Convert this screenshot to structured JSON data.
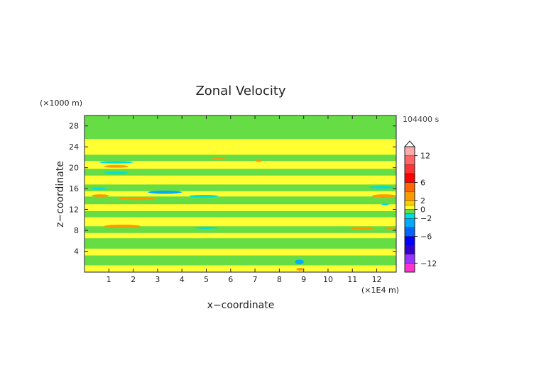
{
  "chart_data": {
    "type": "heatmap",
    "title": "Zonal Velocity",
    "xlabel": "x−coordinate",
    "ylabel": "z−coordinate",
    "x_unit": "(×1E4 m)",
    "y_unit": "(×1000 m)",
    "time_label": "104400 s",
    "xlim": [
      0,
      12.8
    ],
    "ylim": [
      0,
      30
    ],
    "x_ticks": [
      1,
      2,
      3,
      4,
      5,
      6,
      7,
      8,
      9,
      10,
      11,
      12
    ],
    "y_ticks": [
      4,
      8,
      12,
      16,
      20,
      24,
      28
    ],
    "colorbar": {
      "range": [
        -14,
        14
      ],
      "tick_values": [
        12,
        6,
        2,
        0,
        -2,
        -6,
        -12
      ],
      "tick_labels": [
        "12",
        "6",
        "2",
        "0",
        "−2",
        "−6",
        "−12"
      ],
      "levels": [
        {
          "from": -14,
          "to": -12,
          "color": "#ff33cc"
        },
        {
          "from": -12,
          "to": -10,
          "color": "#9933ff"
        },
        {
          "from": -10,
          "to": -8,
          "color": "#3300cc"
        },
        {
          "from": -8,
          "to": -6,
          "color": "#0000ff"
        },
        {
          "from": -6,
          "to": -4,
          "color": "#0066ff"
        },
        {
          "from": -4,
          "to": -2,
          "color": "#00aaff"
        },
        {
          "from": -2,
          "to": -1,
          "color": "#00dddd"
        },
        {
          "from": -1,
          "to": 0,
          "color": "#66dd44"
        },
        {
          "from": 0,
          "to": 1,
          "color": "#ffff33"
        },
        {
          "from": 1,
          "to": 2,
          "color": "#ffcc00"
        },
        {
          "from": 2,
          "to": 4,
          "color": "#ff9900"
        },
        {
          "from": 4,
          "to": 6,
          "color": "#ff6600"
        },
        {
          "from": 6,
          "to": 8,
          "color": "#ff0000"
        },
        {
          "from": 8,
          "to": 10,
          "color": "#ff3333"
        },
        {
          "from": 10,
          "to": 12,
          "color": "#ff6666"
        },
        {
          "from": 12,
          "to": 14,
          "color": "#ffaaaa"
        }
      ]
    },
    "background_value": 0.5,
    "bands": [
      {
        "z0": 0.0,
        "z1": 1.3,
        "value": 0.5
      },
      {
        "z0": 1.3,
        "z1": 3.2,
        "value": -0.5
      },
      {
        "z0": 3.2,
        "z1": 4.5,
        "value": 0.5
      },
      {
        "z0": 4.5,
        "z1": 6.5,
        "value": -0.5
      },
      {
        "z0": 6.5,
        "z1": 7.5,
        "value": 0.5
      },
      {
        "z0": 7.5,
        "z1": 8.8,
        "value": -0.5
      },
      {
        "z0": 8.8,
        "z1": 10.5,
        "value": 0.5
      },
      {
        "z0": 10.5,
        "z1": 11.7,
        "value": -0.5
      },
      {
        "z0": 11.7,
        "z1": 13.0,
        "value": 0.5
      },
      {
        "z0": 13.0,
        "z1": 14.5,
        "value": -0.5
      },
      {
        "z0": 14.5,
        "z1": 15.5,
        "value": 0.5
      },
      {
        "z0": 15.5,
        "z1": 16.8,
        "value": -0.5
      },
      {
        "z0": 16.8,
        "z1": 18.5,
        "value": 0.5
      },
      {
        "z0": 18.5,
        "z1": 19.8,
        "value": -0.5
      },
      {
        "z0": 19.8,
        "z1": 21.3,
        "value": 0.5
      },
      {
        "z0": 21.3,
        "z1": 22.5,
        "value": -0.5
      },
      {
        "z0": 22.5,
        "z1": 25.5,
        "value": 0.5
      },
      {
        "z0": 25.5,
        "z1": 30.0,
        "value": -0.5
      }
    ],
    "patches": [
      {
        "x": 0.6,
        "z": 20.8,
        "w": 1.4,
        "h": 0.5,
        "value": -1.5
      },
      {
        "x": 0.8,
        "z": 18.8,
        "w": 1.0,
        "h": 0.4,
        "value": -1.5
      },
      {
        "x": 0.8,
        "z": 20.0,
        "w": 1.0,
        "h": 0.5,
        "value": 2.5
      },
      {
        "x": 2.6,
        "z": 15.0,
        "w": 1.4,
        "h": 0.6,
        "value": -2.5
      },
      {
        "x": 4.3,
        "z": 14.3,
        "w": 1.2,
        "h": 0.5,
        "value": -1.5
      },
      {
        "x": 1.4,
        "z": 13.8,
        "w": 1.5,
        "h": 0.6,
        "value": 2.5
      },
      {
        "x": 0.3,
        "z": 14.4,
        "w": 0.7,
        "h": 0.5,
        "value": 2.5
      },
      {
        "x": 0.3,
        "z": 15.8,
        "w": 0.6,
        "h": 0.4,
        "value": -1.5
      },
      {
        "x": 0.8,
        "z": 8.5,
        "w": 1.5,
        "h": 0.6,
        "value": 2.5
      },
      {
        "x": 4.5,
        "z": 8.3,
        "w": 1.0,
        "h": 0.4,
        "value": -1.5
      },
      {
        "x": 5.2,
        "z": 21.7,
        "w": 0.6,
        "h": 0.3,
        "value": 2.5
      },
      {
        "x": 7.0,
        "z": 21.2,
        "w": 0.3,
        "h": 0.2,
        "value": 2.5
      },
      {
        "x": 10.9,
        "z": 8.2,
        "w": 1.0,
        "h": 0.5,
        "value": 2.5
      },
      {
        "x": 11.7,
        "z": 16.0,
        "w": 1.0,
        "h": 0.5,
        "value": -1.5
      },
      {
        "x": 11.8,
        "z": 14.3,
        "w": 1.0,
        "h": 0.6,
        "value": 2.5
      },
      {
        "x": 12.2,
        "z": 12.8,
        "w": 0.3,
        "h": 0.4,
        "value": -1.5
      },
      {
        "x": 8.65,
        "z": 1.5,
        "w": 0.35,
        "h": 0.9,
        "value": -2.5
      },
      {
        "x": 8.7,
        "z": 0.3,
        "w": 0.3,
        "h": 0.5,
        "value": 2.5
      },
      {
        "x": 12.3,
        "z": 8.3,
        "w": 0.5,
        "h": 0.4,
        "value": 2.5
      }
    ]
  }
}
